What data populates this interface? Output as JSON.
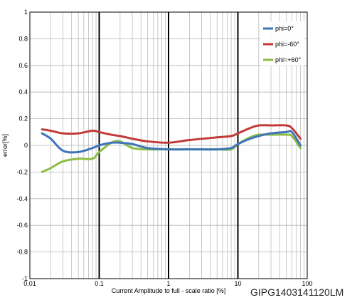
{
  "figure_id": "GIPG1403141120LM",
  "chart_data": {
    "type": "line",
    "title": "",
    "xlabel": "Current Amplitude to full  - scale ratio [%]",
    "ylabel": "error[%]",
    "xscale": "log",
    "xlim": [
      0.01,
      100
    ],
    "ylim": [
      -1,
      1
    ],
    "x_ticks": [
      "0.01",
      "0.1",
      "1",
      "10",
      "100"
    ],
    "y_ticks": [
      "-1",
      "-0.8",
      "-0.6",
      "-0.4",
      "-0.2",
      "0",
      "0.2",
      "0.4",
      "0.6",
      "0.8",
      "1"
    ],
    "grid": true,
    "legend_position": "top-right",
    "series": [
      {
        "name": "phi=0°",
        "color": "#3f74b8",
        "x": [
          0.015,
          0.02,
          0.03,
          0.05,
          0.08,
          0.1,
          0.15,
          0.2,
          0.3,
          0.5,
          1,
          2,
          5,
          8,
          10,
          15,
          20,
          30,
          50,
          60,
          80
        ],
        "y": [
          0.09,
          0.05,
          -0.04,
          -0.05,
          -0.02,
          0.0,
          0.02,
          0.02,
          0.01,
          -0.02,
          -0.03,
          -0.03,
          -0.03,
          -0.02,
          0.01,
          0.05,
          0.07,
          0.09,
          0.1,
          0.1,
          0.0
        ]
      },
      {
        "name": "phi=-60°",
        "color": "#c23b38",
        "x": [
          0.015,
          0.02,
          0.03,
          0.05,
          0.08,
          0.1,
          0.15,
          0.2,
          0.3,
          0.5,
          1,
          2,
          5,
          8,
          10,
          15,
          20,
          30,
          50,
          60,
          80
        ],
        "y": [
          0.12,
          0.11,
          0.09,
          0.09,
          0.11,
          0.1,
          0.08,
          0.07,
          0.05,
          0.03,
          0.02,
          0.04,
          0.06,
          0.07,
          0.09,
          0.13,
          0.15,
          0.15,
          0.15,
          0.13,
          0.05
        ]
      },
      {
        "name": "phi=+60°",
        "color": "#8dbd45",
        "x": [
          0.015,
          0.02,
          0.03,
          0.05,
          0.08,
          0.1,
          0.15,
          0.2,
          0.3,
          0.5,
          1,
          2,
          5,
          8,
          10,
          15,
          20,
          30,
          50,
          60,
          80
        ],
        "y": [
          -0.2,
          -0.17,
          -0.12,
          -0.1,
          -0.1,
          -0.05,
          0.02,
          0.03,
          -0.02,
          -0.03,
          -0.03,
          -0.03,
          -0.03,
          -0.03,
          0.01,
          0.06,
          0.08,
          0.08,
          0.08,
          0.07,
          -0.02
        ]
      }
    ]
  }
}
